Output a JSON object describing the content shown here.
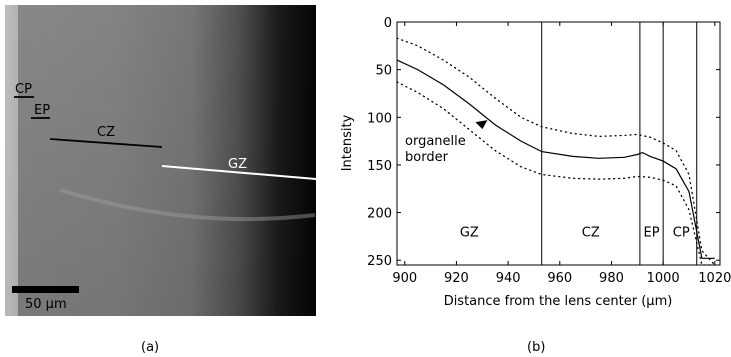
{
  "panel_a": {
    "caption": "(a)",
    "scalebar_label": "50 µm",
    "labels": {
      "cp": "CP",
      "ep": "EP",
      "cz": "CZ",
      "gz": "GZ"
    }
  },
  "panel_b": {
    "caption": "(b)"
  },
  "chart_data": {
    "type": "line",
    "title": "",
    "xlabel": "Distance from the lens center (µm)",
    "ylabel": "Intensity",
    "xlim": [
      897,
      1022
    ],
    "ylim": [
      0,
      255
    ],
    "y_inverted": true,
    "xticks": [
      900,
      920,
      940,
      960,
      980,
      1000,
      1020
    ],
    "yticks": [
      0,
      50,
      100,
      150,
      200,
      250
    ],
    "grid": false,
    "series": [
      {
        "style": "solid",
        "x": [
          897,
          905,
          915,
          925,
          935,
          945,
          953,
          965,
          975,
          985,
          990,
          992,
          995,
          1000,
          1005,
          1010,
          1015,
          1020
        ],
        "y": [
          40,
          50,
          66,
          86,
          108,
          125,
          136,
          141,
          143,
          142,
          139,
          137,
          141,
          146,
          154,
          178,
          248,
          248
        ]
      },
      {
        "style": "dotted",
        "x": [
          897,
          905,
          915,
          925,
          935,
          945,
          953,
          965,
          975,
          985,
          990,
          995,
          1000,
          1005,
          1010,
          1015,
          1020
        ],
        "y": [
          17,
          25,
          40,
          58,
          80,
          100,
          110,
          117,
          120,
          119,
          118,
          121,
          127,
          135,
          160,
          240,
          255
        ]
      },
      {
        "style": "dotted",
        "x": [
          897,
          905,
          915,
          925,
          935,
          945,
          953,
          965,
          975,
          985,
          990,
          995,
          1000,
          1005,
          1010,
          1015,
          1020
        ],
        "y": [
          63,
          74,
          91,
          113,
          135,
          152,
          160,
          164,
          165,
          164,
          162,
          163,
          166,
          172,
          197,
          255,
          255
        ]
      }
    ],
    "zone_boundaries": [
      953,
      991,
      1000,
      1013
    ],
    "zone_labels": [
      {
        "label": "GZ",
        "x": 925
      },
      {
        "label": "CZ",
        "x": 972
      },
      {
        "label": "EP",
        "x": 995.5
      },
      {
        "label": "CP",
        "x": 1007
      }
    ],
    "annotation": {
      "lines": [
        "organelle",
        "border"
      ],
      "arrow_at": {
        "x": 932,
        "y": 103
      }
    }
  }
}
